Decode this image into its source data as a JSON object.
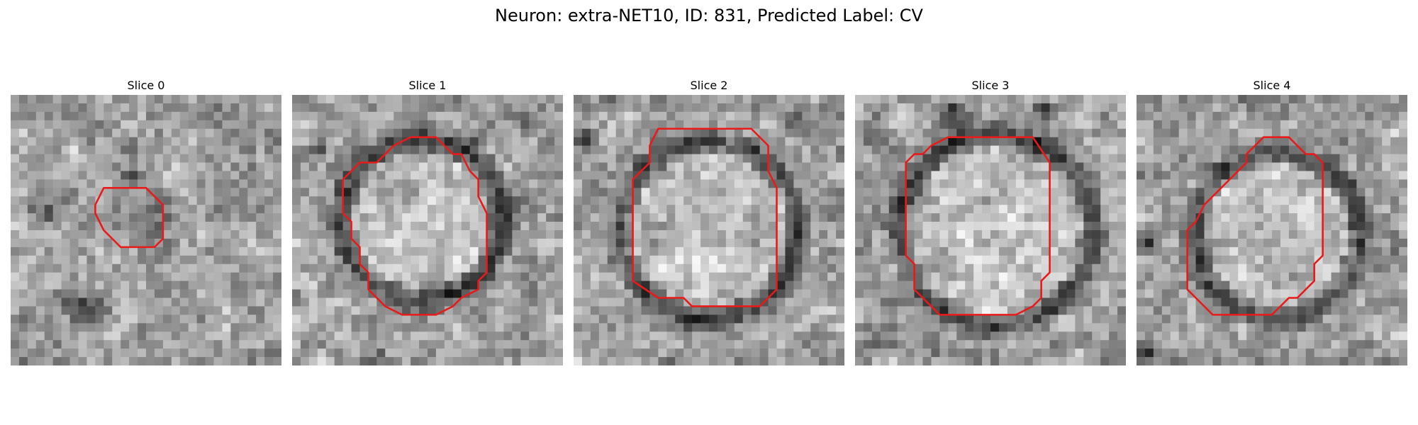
{
  "figure": {
    "title": "Neuron: extra-NET10, ID: 831, Predicted Label: CV"
  },
  "contour_color": "#e81a1a",
  "panels": [
    {
      "title": "Slice 0"
    },
    {
      "title": "Slice 1"
    },
    {
      "title": "Slice 2"
    },
    {
      "title": "Slice 3"
    },
    {
      "title": "Slice 4"
    }
  ]
}
